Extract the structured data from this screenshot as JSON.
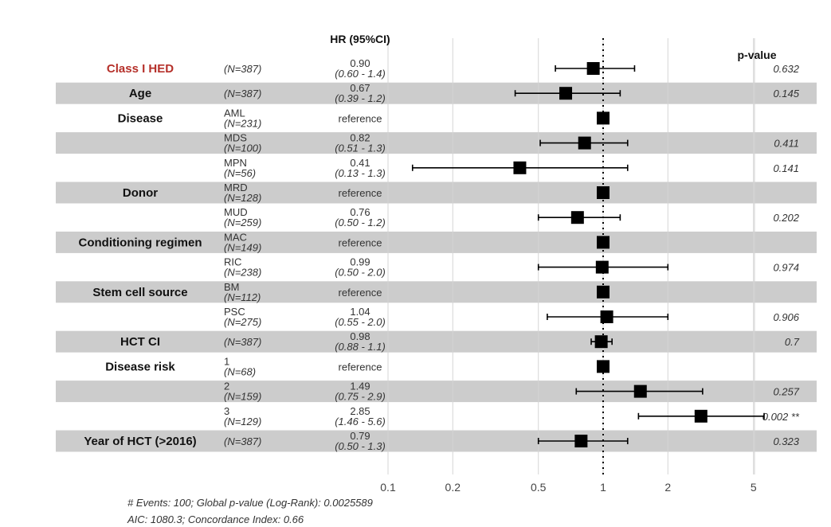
{
  "chart_data": {
    "type": "forest",
    "hr_header": "HR (95%CI)",
    "pvalue_header": "p-value",
    "reference_text": "reference",
    "x_scale": "log",
    "xlim": [
      0.1,
      7
    ],
    "reference_line": 1,
    "ticks": [
      {
        "value": 0.1,
        "label": "0.1"
      },
      {
        "value": 0.2,
        "label": "0.2"
      },
      {
        "value": 0.5,
        "label": "0.5"
      },
      {
        "value": 1,
        "label": "1"
      },
      {
        "value": 2,
        "label": "2"
      },
      {
        "value": 5,
        "label": "5"
      }
    ],
    "rows": [
      {
        "var": "Class I HED",
        "highlight": true,
        "sub": "",
        "n": "(N=387)",
        "hr_label": "0.90",
        "ci_label": "(0.60 - 1.4)",
        "hr": 0.9,
        "lo": 0.6,
        "hi": 1.4,
        "p": "0.632"
      },
      {
        "var": "Age",
        "sub": "",
        "n": "(N=387)",
        "hr_label": "0.67",
        "ci_label": "(0.39 - 1.2)",
        "hr": 0.67,
        "lo": 0.39,
        "hi": 1.2,
        "p": "0.145"
      },
      {
        "var": "Disease",
        "sub": "AML",
        "n": "(N=231)",
        "ref": true,
        "hr": 1
      },
      {
        "var": "",
        "sub": "MDS",
        "n": "(N=100)",
        "hr_label": "0.82",
        "ci_label": "(0.51 - 1.3)",
        "hr": 0.82,
        "lo": 0.51,
        "hi": 1.3,
        "p": "0.411"
      },
      {
        "var": "",
        "sub": "MPN",
        "n": "(N=56)",
        "hr_label": "0.41",
        "ci_label": "(0.13 - 1.3)",
        "hr": 0.41,
        "lo": 0.13,
        "hi": 1.3,
        "p": "0.141"
      },
      {
        "var": "Donor",
        "sub": "MRD",
        "n": "(N=128)",
        "ref": true,
        "hr": 1
      },
      {
        "var": "",
        "sub": "MUD",
        "n": "(N=259)",
        "hr_label": "0.76",
        "ci_label": "(0.50 - 1.2)",
        "hr": 0.76,
        "lo": 0.5,
        "hi": 1.2,
        "p": "0.202"
      },
      {
        "var": "Conditioning regimen",
        "sub": "MAC",
        "n": "(N=149)",
        "ref": true,
        "hr": 1
      },
      {
        "var": "",
        "sub": "RIC",
        "n": "(N=238)",
        "hr_label": "0.99",
        "ci_label": "(0.50 - 2.0)",
        "hr": 0.99,
        "lo": 0.5,
        "hi": 2.0,
        "p": "0.974"
      },
      {
        "var": "Stem cell source",
        "sub": "BM",
        "n": "(N=112)",
        "ref": true,
        "hr": 1
      },
      {
        "var": "",
        "sub": "PSC",
        "n": "(N=275)",
        "hr_label": "1.04",
        "ci_label": "(0.55 - 2.0)",
        "hr": 1.04,
        "lo": 0.55,
        "hi": 2.0,
        "p": "0.906"
      },
      {
        "var": "HCT CI",
        "sub": "",
        "n": "(N=387)",
        "hr_label": "0.98",
        "ci_label": "(0.88 - 1.1)",
        "hr": 0.98,
        "lo": 0.88,
        "hi": 1.1,
        "p": "0.7"
      },
      {
        "var": "Disease risk",
        "sub": "1",
        "n": "(N=68)",
        "ref": true,
        "hr": 1
      },
      {
        "var": "",
        "sub": "2",
        "n": "(N=159)",
        "hr_label": "1.49",
        "ci_label": "(0.75 - 2.9)",
        "hr": 1.49,
        "lo": 0.75,
        "hi": 2.9,
        "p": "0.257"
      },
      {
        "var": "",
        "sub": "3",
        "n": "(N=129)",
        "hr_label": "2.85",
        "ci_label": "(1.46 - 5.6)",
        "hr": 2.85,
        "lo": 1.46,
        "hi": 5.6,
        "p": "0.002 **"
      },
      {
        "var": "Year of HCT (>2016)",
        "sub": "",
        "n": "(N=387)",
        "hr_label": "0.79",
        "ci_label": "(0.50 - 1.3)",
        "hr": 0.79,
        "lo": 0.5,
        "hi": 1.3,
        "p": "0.323"
      }
    ],
    "footnote_1": "# Events: 100; Global p-value (Log-Rank): 0.0025589",
    "footnote_2": "AIC: 1080.3; Concordance Index: 0.66",
    "colors": {
      "shade": "#cccccc",
      "highlight": "#b5302a",
      "marker": "#000000",
      "grid": "#d4d4d4"
    }
  }
}
